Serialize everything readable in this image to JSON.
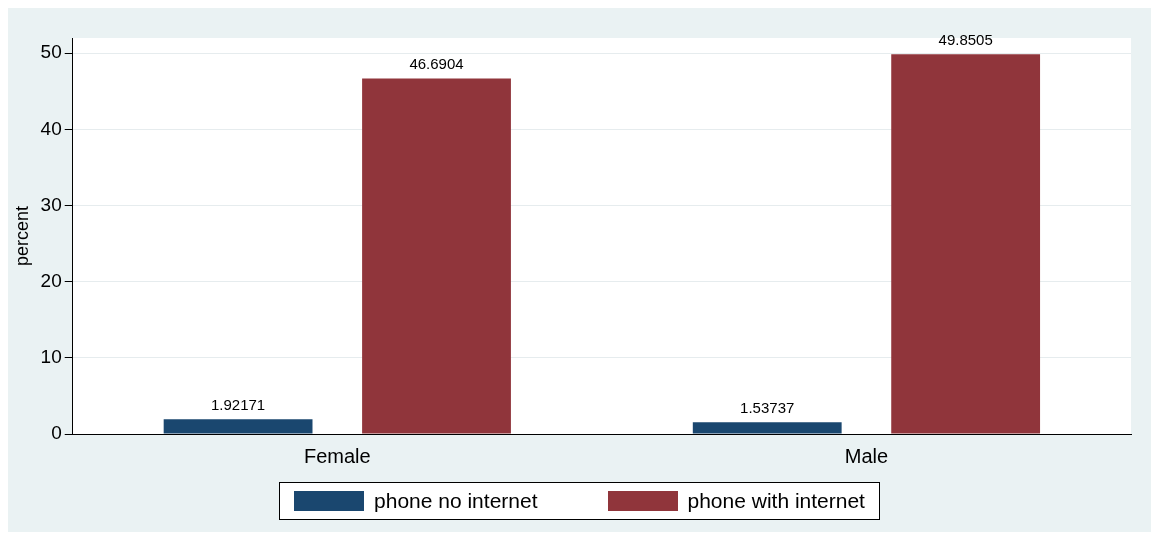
{
  "chart_data": {
    "type": "bar",
    "ylabel": "percent",
    "categories": [
      "Female",
      "Male"
    ],
    "series": [
      {
        "name": "phone no internet",
        "color": "#1a476f",
        "values": [
          1.92171,
          1.53737
        ]
      },
      {
        "name": "phone with internet",
        "color": "#90353b",
        "values": [
          46.6904,
          49.8505
        ]
      }
    ],
    "ylim": [
      0,
      52
    ],
    "yticks": [
      0,
      10,
      20,
      30,
      40,
      50
    ],
    "grid": "y",
    "legend": "bottom",
    "data_labels": true
  }
}
